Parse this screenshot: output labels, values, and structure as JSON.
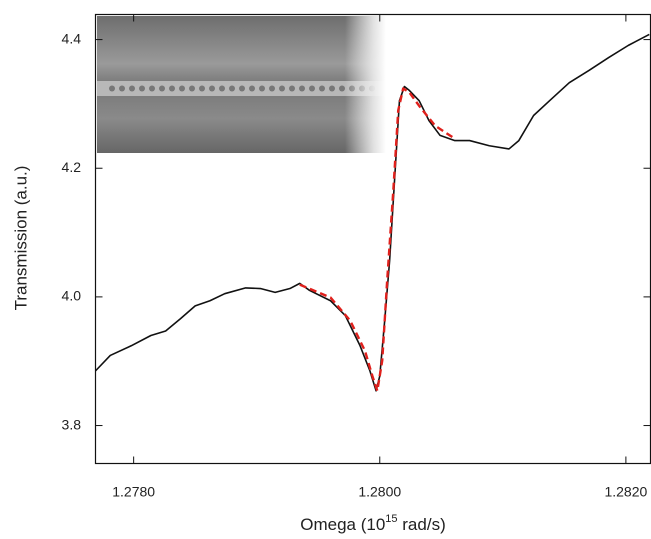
{
  "chart_data": {
    "type": "line",
    "xlabel_parts": [
      "Omega (10",
      "15",
      " rad/s)"
    ],
    "ylabel": "Transmission (a.u.)",
    "xlim": [
      1.27769,
      1.2822
    ],
    "ylim": [
      3.741,
      4.439
    ],
    "xticks": [
      {
        "value": 1.278,
        "label": "1.2780"
      },
      {
        "value": 1.28,
        "label": "1.2800"
      },
      {
        "value": 1.282,
        "label": "1.2820"
      }
    ],
    "yticks": [
      3.8,
      {
        "value": 4.0,
        "label": "4.0"
      },
      4.2,
      4.4
    ],
    "series": [
      {
        "color": "#111111",
        "dash": false,
        "x": [
          1.27769,
          1.27781,
          1.27798,
          1.27814,
          1.27826,
          1.27838,
          1.2785,
          1.27862,
          1.27874,
          1.27891,
          1.27903,
          1.27915,
          1.27927,
          1.27935,
          1.27943,
          1.2796,
          1.27972,
          1.27984,
          1.27992,
          1.27997,
          1.28,
          1.28004,
          1.28008,
          1.28012,
          1.28016,
          1.2802,
          1.28024,
          1.28032,
          1.2804,
          1.28049,
          1.28061,
          1.28073,
          1.28089,
          1.28105,
          1.28113,
          1.28125,
          1.28138,
          1.28154,
          1.2817,
          1.28186,
          1.28202,
          1.28219
        ],
        "values": [
          3.885,
          3.909,
          3.924,
          3.94,
          3.947,
          3.966,
          3.986,
          3.994,
          4.005,
          4.014,
          4.013,
          4.007,
          4.013,
          4.021,
          4.01,
          3.994,
          3.971,
          3.924,
          3.885,
          3.854,
          3.877,
          3.963,
          4.056,
          4.181,
          4.305,
          4.327,
          4.321,
          4.305,
          4.274,
          4.251,
          4.243,
          4.243,
          4.235,
          4.23,
          4.243,
          4.282,
          4.305,
          4.333,
          4.352,
          4.372,
          4.391,
          4.408
        ]
      },
      {
        "color": "#e0201c",
        "dash": true,
        "x": [
          1.27935,
          1.2796,
          1.27976,
          1.27988,
          1.27994,
          1.27998,
          1.28002,
          1.28006,
          1.28011,
          1.28015,
          1.28019,
          1.28024,
          1.28032,
          1.28045,
          1.28061
        ],
        "values": [
          4.019,
          3.999,
          3.963,
          3.916,
          3.877,
          3.854,
          3.901,
          4.025,
          4.165,
          4.29,
          4.324,
          4.318,
          4.297,
          4.266,
          4.246
        ]
      }
    ]
  }
}
